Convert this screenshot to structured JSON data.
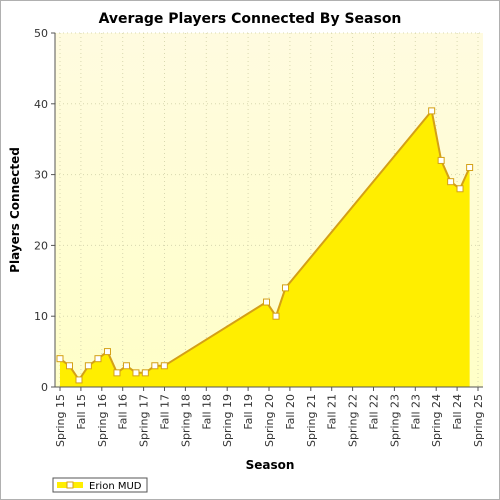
{
  "chart_data": {
    "type": "area",
    "title": "Average Players Connected By Season",
    "xlabel": "Season",
    "ylabel": "Players Connected",
    "ylim": [
      0,
      50
    ],
    "yticks": [
      0,
      10,
      20,
      30,
      40,
      50
    ],
    "grid": true,
    "legend_position": "bottom-left",
    "categories": [
      "Spring 15",
      "Fall 15",
      "Spring 16",
      "Fall 16",
      "Spring 17",
      "Fall 17",
      "Spring 18",
      "Fall 18",
      "Spring 19",
      "Fall 19",
      "Spring 20",
      "Fall 20",
      "Spring 21",
      "Fall 21",
      "Spring 22",
      "Fall 22",
      "Spring 23",
      "Fall 23",
      "Spring 24",
      "Fall 24",
      "Spring 25"
    ],
    "x_range": [
      "2015-03-01",
      "2025-04-15"
    ],
    "series": [
      {
        "name": "Erion MUD",
        "color": "#ffee00",
        "line_color": "#d4a017",
        "x": [
          "2015-03-01",
          "2015-05-24",
          "2015-08-16",
          "2015-11-07",
          "2016-01-31",
          "2016-04-24",
          "2016-07-17",
          "2016-10-09",
          "2017-01-01",
          "2017-03-25",
          "2017-06-17",
          "2017-09-09",
          "2020-03-01",
          "2020-05-24",
          "2020-08-16",
          "2024-03-01",
          "2024-05-24",
          "2024-08-16",
          "2024-11-07",
          "2025-01-31"
        ],
        "values": [
          4,
          3,
          1,
          3,
          4,
          5,
          2,
          3,
          2,
          2,
          3,
          3,
          12,
          10,
          14,
          39,
          32,
          29,
          28,
          31
        ]
      }
    ]
  }
}
